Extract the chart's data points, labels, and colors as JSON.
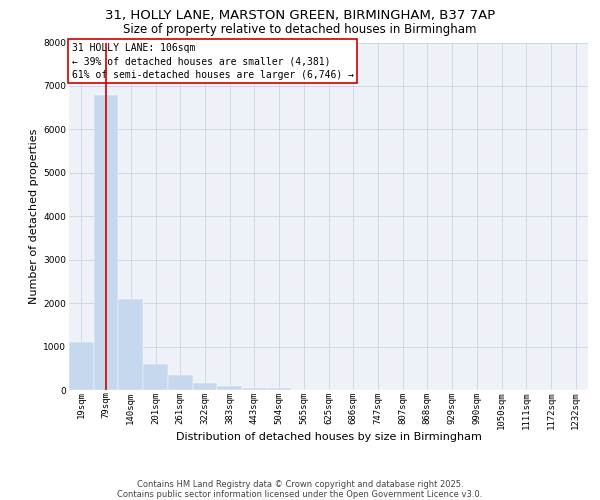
{
  "title1": "31, HOLLY LANE, MARSTON GREEN, BIRMINGHAM, B37 7AP",
  "title2": "Size of property relative to detached houses in Birmingham",
  "xlabel": "Distribution of detached houses by size in Birmingham",
  "ylabel": "Number of detached properties",
  "bar_color": "#c5d8ee",
  "grid_color": "#c8d4e4",
  "background_color": "#eef2f8",
  "bins": [
    "19sqm",
    "79sqm",
    "140sqm",
    "201sqm",
    "261sqm",
    "322sqm",
    "383sqm",
    "443sqm",
    "504sqm",
    "565sqm",
    "625sqm",
    "686sqm",
    "747sqm",
    "807sqm",
    "868sqm",
    "929sqm",
    "990sqm",
    "1050sqm",
    "1111sqm",
    "1172sqm",
    "1232sqm"
  ],
  "values": [
    1100,
    6800,
    2100,
    600,
    350,
    150,
    100,
    50,
    50,
    0,
    0,
    0,
    0,
    0,
    0,
    0,
    0,
    0,
    0,
    0,
    0
  ],
  "ylim": [
    0,
    8000
  ],
  "yticks": [
    0,
    1000,
    2000,
    3000,
    4000,
    5000,
    6000,
    7000,
    8000
  ],
  "vline_x_index": 1,
  "vline_color": "#cc0000",
  "annotation_text": "31 HOLLY LANE: 106sqm\n← 39% of detached houses are smaller (4,381)\n61% of semi-detached houses are larger (6,746) →",
  "annotation_box_edgecolor": "#cc0000",
  "footer_text": "Contains HM Land Registry data © Crown copyright and database right 2025.\nContains public sector information licensed under the Open Government Licence v3.0.",
  "title_fontsize": 9.5,
  "subtitle_fontsize": 8.5,
  "axis_label_fontsize": 8,
  "tick_fontsize": 6.5,
  "annot_fontsize": 7,
  "footer_fontsize": 6
}
